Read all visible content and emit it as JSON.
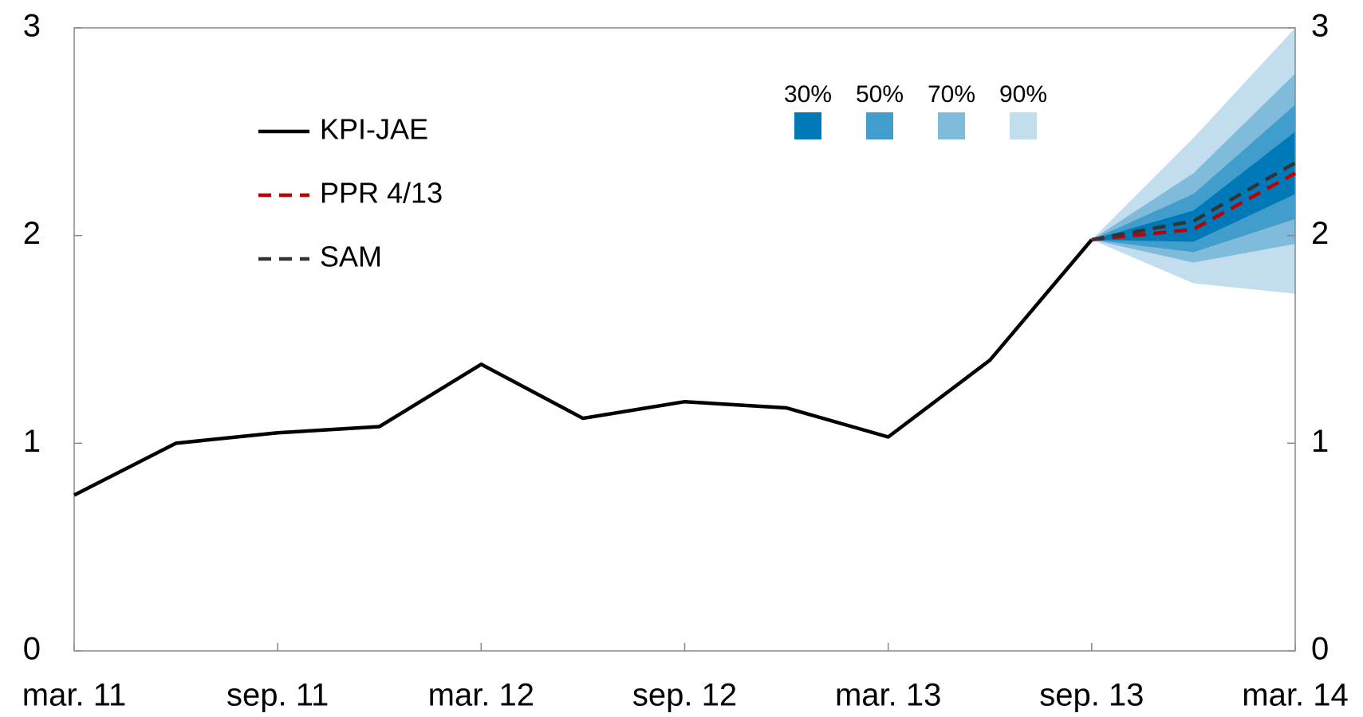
{
  "chart_data": {
    "type": "line",
    "categories": [
      "mar. 11",
      null,
      "sep. 11",
      null,
      "mar. 12",
      null,
      "sep. 12",
      null,
      "mar. 13",
      null,
      "sep. 13",
      null,
      "mar. 14"
    ],
    "series": [
      {
        "name": "KPI-JAE",
        "color": "#000000",
        "dash": false,
        "values": [
          0.75,
          1.0,
          1.05,
          1.08,
          1.38,
          1.12,
          1.2,
          1.17,
          1.03,
          1.4,
          1.98,
          null,
          null
        ]
      },
      {
        "name": "PPR 4/13",
        "color": "#c00000",
        "dash": true,
        "values": [
          null,
          null,
          null,
          null,
          null,
          null,
          null,
          null,
          null,
          null,
          1.98,
          2.03,
          2.3
        ]
      },
      {
        "name": "SAM",
        "color": "#333333",
        "dash": true,
        "values": [
          null,
          null,
          null,
          null,
          null,
          null,
          null,
          null,
          null,
          null,
          1.98,
          2.07,
          2.35
        ]
      }
    ],
    "fan": [
      {
        "name": "90%",
        "color": "#c2ddee",
        "lower": [
          null,
          null,
          null,
          null,
          null,
          null,
          null,
          null,
          null,
          null,
          1.98,
          1.77,
          1.72
        ],
        "upper": [
          null,
          null,
          null,
          null,
          null,
          null,
          null,
          null,
          null,
          null,
          1.98,
          2.47,
          3.0
        ]
      },
      {
        "name": "70%",
        "color": "#80bbdc",
        "lower": [
          null,
          null,
          null,
          null,
          null,
          null,
          null,
          null,
          null,
          null,
          1.98,
          1.87,
          1.96
        ],
        "upper": [
          null,
          null,
          null,
          null,
          null,
          null,
          null,
          null,
          null,
          null,
          1.98,
          2.3,
          2.78
        ]
      },
      {
        "name": "50%",
        "color": "#409dcc",
        "lower": [
          null,
          null,
          null,
          null,
          null,
          null,
          null,
          null,
          null,
          null,
          1.98,
          1.92,
          2.08
        ],
        "upper": [
          null,
          null,
          null,
          null,
          null,
          null,
          null,
          null,
          null,
          null,
          1.98,
          2.2,
          2.63
        ]
      },
      {
        "name": "30%",
        "color": "#0079b8",
        "lower": [
          null,
          null,
          null,
          null,
          null,
          null,
          null,
          null,
          null,
          null,
          1.98,
          1.97,
          2.2
        ],
        "upper": [
          null,
          null,
          null,
          null,
          null,
          null,
          null,
          null,
          null,
          null,
          1.98,
          2.12,
          2.5
        ]
      }
    ],
    "ylim": [
      0,
      3
    ],
    "yticks": [
      0,
      1,
      2,
      3
    ],
    "y2lim": [
      0,
      3
    ],
    "y2ticks": [
      0,
      1,
      2,
      3
    ]
  }
}
